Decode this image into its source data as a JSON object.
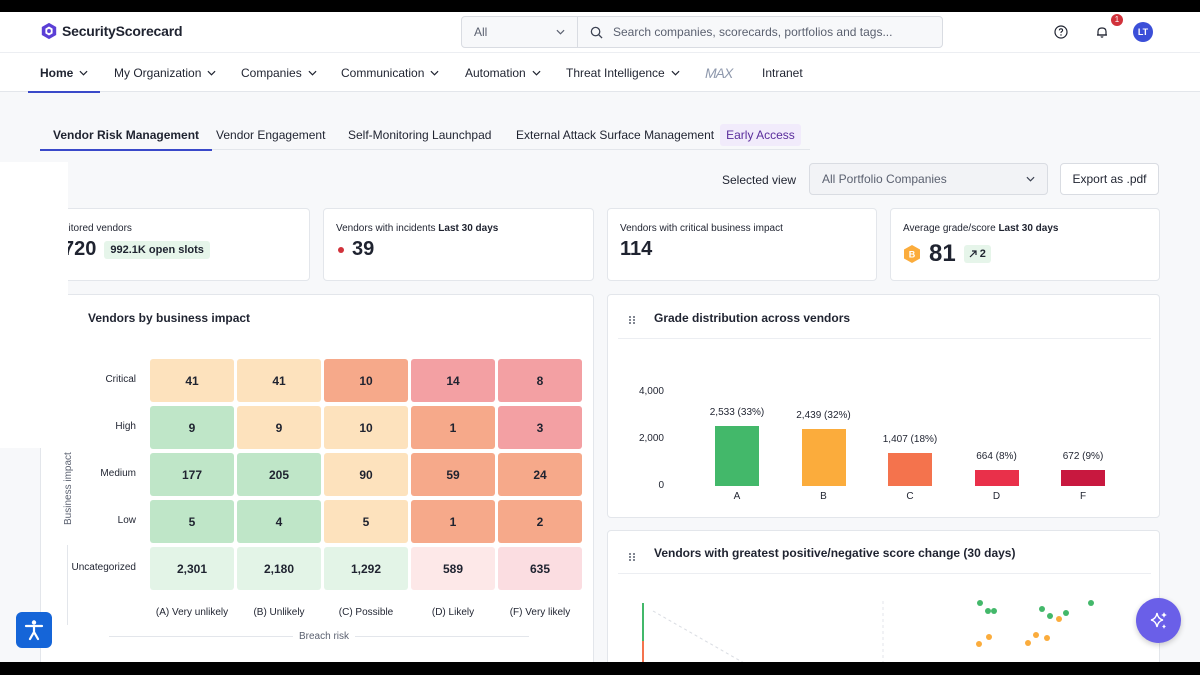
{
  "header": {
    "brand": "SecurityScorecard",
    "scope_value": "All",
    "search_placeholder": "Search companies, scorecards, portfolios and tags...",
    "notification_count": "1",
    "avatar_initials": "LT"
  },
  "nav": {
    "items": [
      {
        "label": "Home",
        "active": true
      },
      {
        "label": "My Organization"
      },
      {
        "label": "Companies"
      },
      {
        "label": "Communication"
      },
      {
        "label": "Automation"
      },
      {
        "label": "Threat Intelligence"
      },
      {
        "label": "MAX"
      },
      {
        "label": "Intranet"
      }
    ]
  },
  "subtabs": {
    "items": [
      {
        "label": "Vendor Risk Management",
        "active": true
      },
      {
        "label": "Vendor Engagement"
      },
      {
        "label": "Self-Monitoring Launchpad"
      },
      {
        "label": "External Attack Surface Management"
      }
    ],
    "badge": "Early Access"
  },
  "view": {
    "label": "Selected view",
    "selected": "All Portfolio Companies",
    "export_label": "Export as .pdf"
  },
  "kpis": {
    "monitored": {
      "label": "nitored vendors",
      "value": "720",
      "pill": "992.1K open slots"
    },
    "incidents": {
      "label": "Vendors with incidents",
      "period": "Last 30 days",
      "value": "39"
    },
    "critical": {
      "label": "Vendors with critical business impact",
      "value": "114"
    },
    "grade": {
      "label": "Average grade/score",
      "period": "Last 30 days",
      "grade_letter": "B",
      "value": "81",
      "trend": "2"
    }
  },
  "heatmap": {
    "title": "Vendors by business impact",
    "y_axis": "Business impact",
    "x_axis": "Breach risk",
    "rows": [
      "Critical",
      "High",
      "Medium",
      "Low",
      "Uncategorized"
    ],
    "cols": [
      "(A) Very unlikely",
      "(B) Unlikely",
      "(C) Possible",
      "(D) Likely",
      "(F) Very likely"
    ],
    "values": [
      [
        "41",
        "41",
        "10",
        "14",
        "8"
      ],
      [
        "9",
        "9",
        "10",
        "1",
        "3"
      ],
      [
        "177",
        "205",
        "90",
        "59",
        "24"
      ],
      [
        "5",
        "4",
        "5",
        "1",
        "2"
      ],
      [
        "2,301",
        "2,180",
        "1,292",
        "589",
        "635"
      ]
    ],
    "colors": [
      [
        "#fde2bd",
        "#fde2bd",
        "#f6a98a",
        "#f3a0a3",
        "#f3a0a3"
      ],
      [
        "#bfe6c8",
        "#fde2bd",
        "#fde2bd",
        "#f6a98a",
        "#f3a0a3"
      ],
      [
        "#bfe6c8",
        "#bfe6c8",
        "#fde2bd",
        "#f6a98a",
        "#f6a98a"
      ],
      [
        "#bfe6c8",
        "#bfe6c8",
        "#fde2bd",
        "#f6a98a",
        "#f6a98a"
      ],
      [
        "#e3f4e7",
        "#e3f4e7",
        "#e3f4e7",
        "#fde8e8",
        "#fbdde1"
      ]
    ]
  },
  "chart_data": {
    "type": "bar",
    "title": "Grade distribution across vendors",
    "categories": [
      "A",
      "B",
      "C",
      "D",
      "F"
    ],
    "values": [
      2533,
      2439,
      1407,
      664,
      672
    ],
    "data_labels": [
      "2,533 (33%)",
      "2,439 (32%)",
      "1,407 (18%)",
      "664 (8%)",
      "672 (9%)"
    ],
    "colors": [
      "#43b86a",
      "#fbac3c",
      "#f4734d",
      "#e9304a",
      "#c8183f"
    ],
    "y_ticks": [
      "4,000",
      "2,000",
      "0"
    ],
    "ylim": [
      0,
      4000
    ]
  },
  "score_change": {
    "title": "Vendors with greatest positive/negative score change (30 days)"
  }
}
